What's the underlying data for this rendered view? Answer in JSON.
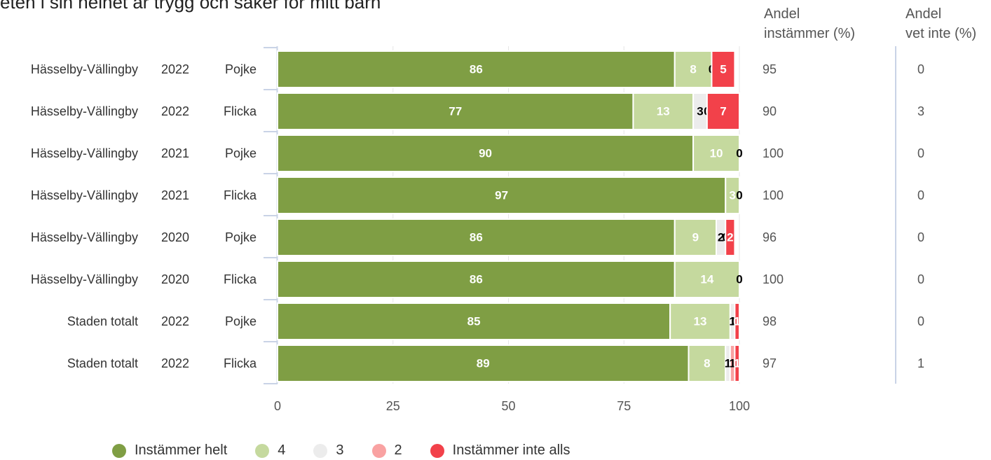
{
  "title_fragment": "eten i sin helhet är trygg och säker för mitt barn",
  "columns": {
    "instammer": [
      "Andel",
      "instämmer (%)"
    ],
    "vet_inte": [
      "Andel",
      "vet inte (%)"
    ]
  },
  "colors": {
    "Instämmer helt": "#7f9e44",
    "4": "#c5d99e",
    "3": "#ececec",
    "2": "#f9a2a2",
    "Instämmer inte alls": "#f2414a"
  },
  "chart_data": {
    "type": "bar",
    "orientation": "horizontal",
    "stacked": true,
    "xlim": [
      0,
      100
    ],
    "x_ticks": [
      "0",
      "25",
      "50",
      "75",
      "100"
    ],
    "legend": [
      "Instämmer helt",
      "4",
      "3",
      "2",
      "Instämmer inte alls"
    ],
    "legend_position": "bottom",
    "rows": [
      {
        "area": "Hässelby-Vällingby",
        "year": "2022",
        "gender": "Pojke",
        "values": [
          86,
          8,
          0,
          0,
          5
        ],
        "labels": [
          "86",
          "8",
          "0",
          "",
          "5"
        ],
        "andel_instammer": "95",
        "andel_vet_inte": "0"
      },
      {
        "area": "Hässelby-Vällingby",
        "year": "2022",
        "gender": "Flicka",
        "values": [
          77,
          13,
          3,
          0,
          7
        ],
        "labels": [
          "77",
          "13",
          "3",
          "0",
          "7"
        ],
        "andel_instammer": "90",
        "andel_vet_inte": "3"
      },
      {
        "area": "Hässelby-Vällingby",
        "year": "2021",
        "gender": "Pojke",
        "values": [
          90,
          10,
          0,
          0,
          0
        ],
        "labels": [
          "90",
          "10",
          "0",
          "",
          ""
        ],
        "andel_instammer": "100",
        "andel_vet_inte": "0"
      },
      {
        "area": "Hässelby-Vällingby",
        "year": "2021",
        "gender": "Flicka",
        "values": [
          97,
          3,
          0,
          0,
          0
        ],
        "labels": [
          "97",
          "3",
          "0",
          "",
          ""
        ],
        "andel_instammer": "100",
        "andel_vet_inte": "0"
      },
      {
        "area": "Hässelby-Vällingby",
        "year": "2020",
        "gender": "Pojke",
        "values": [
          86,
          9,
          2,
          0,
          2
        ],
        "labels": [
          "86",
          "9",
          "2",
          "0",
          "2"
        ],
        "andel_instammer": "96",
        "andel_vet_inte": "0"
      },
      {
        "area": "Hässelby-Vällingby",
        "year": "2020",
        "gender": "Flicka",
        "values": [
          86,
          14,
          0,
          0,
          0
        ],
        "labels": [
          "86",
          "14",
          "0",
          "",
          ""
        ],
        "andel_instammer": "100",
        "andel_vet_inte": "0"
      },
      {
        "area": "Staden totalt",
        "year": "2022",
        "gender": "Pojke",
        "values": [
          85,
          13,
          1,
          0,
          1
        ],
        "labels": [
          "85",
          "13",
          "1",
          "0",
          "1"
        ],
        "andel_instammer": "98",
        "andel_vet_inte": "0"
      },
      {
        "area": "Staden totalt",
        "year": "2022",
        "gender": "Flicka",
        "values": [
          89,
          8,
          1,
          1,
          1
        ],
        "labels": [
          "89",
          "8",
          "1",
          "1",
          "1"
        ],
        "andel_instammer": "97",
        "andel_vet_inte": "1"
      }
    ]
  }
}
